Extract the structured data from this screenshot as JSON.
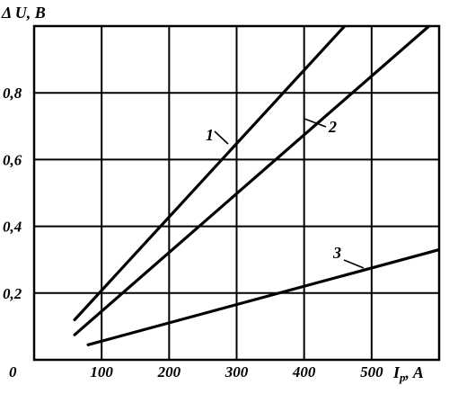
{
  "chart_data": {
    "type": "line",
    "xlabel": "I",
    "xlabel_subscript": "p",
    "xlabel_unit": ", A",
    "ylabel": "Δ U, B",
    "xlim": [
      0,
      600
    ],
    "ylim": [
      0,
      1.0
    ],
    "grid": true,
    "origin_label": "0",
    "x_ticks": [
      {
        "value": 100,
        "label": "100"
      },
      {
        "value": 200,
        "label": "200"
      },
      {
        "value": 300,
        "label": "300"
      },
      {
        "value": 400,
        "label": "400"
      },
      {
        "value": 500,
        "label": "500"
      }
    ],
    "y_ticks": [
      {
        "value": 0.2,
        "label": "0,2"
      },
      {
        "value": 0.4,
        "label": "0,4"
      },
      {
        "value": 0.6,
        "label": "0,6"
      },
      {
        "value": 0.8,
        "label": "0,8"
      }
    ],
    "series": [
      {
        "name": "1",
        "x": [
          60,
          460
        ],
        "y": [
          0.12,
          1.0
        ]
      },
      {
        "name": "2",
        "x": [
          60,
          585
        ],
        "y": [
          0.075,
          1.0
        ]
      },
      {
        "name": "3",
        "x": [
          80,
          600
        ],
        "y": [
          0.045,
          0.33
        ]
      }
    ]
  }
}
